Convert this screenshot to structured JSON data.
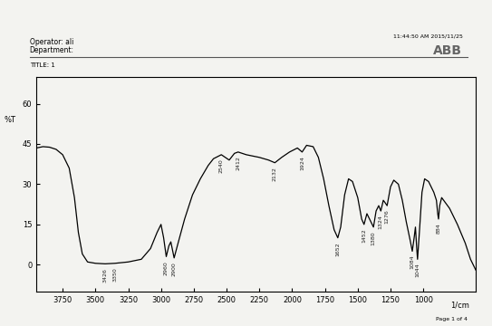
{
  "chart_data": {
    "type": "line",
    "title": "TITLE: 1",
    "header": {
      "operator": "Operator: ali",
      "department": "Department:",
      "timestamp": "11:44:50 AM 2015/11/25",
      "brand": "ABB",
      "page": "Page 1 of 4"
    },
    "x_label": "1/cm",
    "y_label": "%T",
    "x": [
      3950,
      3900,
      3850,
      3800,
      3750,
      3700,
      3660,
      3630,
      3600,
      3560,
      3500,
      3426,
      3350,
      3250,
      3150,
      3080,
      3030,
      3000,
      2980,
      2960,
      2940,
      2925,
      2900,
      2870,
      2820,
      2760,
      2700,
      2640,
      2600,
      2540,
      2480,
      2440,
      2412,
      2350,
      2250,
      2180,
      2132,
      2080,
      2020,
      1960,
      1924,
      1890,
      1840,
      1800,
      1760,
      1720,
      1680,
      1652,
      1630,
      1600,
      1570,
      1540,
      1500,
      1470,
      1452,
      1430,
      1400,
      1380,
      1360,
      1340,
      1324,
      1305,
      1290,
      1276,
      1250,
      1225,
      1190,
      1160,
      1130,
      1100,
      1084,
      1070,
      1060,
      1050,
      1044,
      1030,
      1010,
      990,
      960,
      920,
      900,
      890,
      884,
      875,
      860,
      800,
      740,
      680,
      640,
      600
    ],
    "values": [
      43.5,
      44,
      43.8,
      43,
      41,
      36,
      25,
      12,
      4,
      1,
      0.5,
      0.3,
      0.5,
      1,
      2,
      6,
      12,
      15,
      10,
      3,
      7,
      8.5,
      2.5,
      8,
      17,
      26,
      32,
      37,
      39.5,
      41,
      39,
      41.5,
      42,
      41,
      40,
      39,
      38,
      40,
      42,
      43.5,
      42,
      44.5,
      44,
      40,
      32,
      22,
      13,
      10,
      14,
      26,
      32,
      31,
      25,
      17,
      15,
      19,
      16,
      14,
      20,
      22,
      20,
      24,
      23,
      22,
      29,
      31.5,
      30,
      24,
      16,
      9,
      5,
      10,
      14,
      6,
      2,
      12,
      27,
      32,
      31,
      27,
      24,
      19,
      17,
      22,
      25,
      21,
      15,
      8,
      2,
      -2
    ],
    "color": "#000000",
    "peaks": [
      3426,
      3350,
      2960,
      2900,
      2540,
      2412,
      2132,
      1924,
      1652,
      1452,
      1380,
      1324,
      1276,
      1084,
      1044,
      884
    ],
    "xlim": [
      3950,
      600
    ],
    "xticks": [
      3750,
      3500,
      3250,
      3000,
      2750,
      2500,
      2250,
      2000,
      1750,
      1500,
      1250,
      1000
    ],
    "ylim": [
      -10,
      70
    ],
    "yticks": [
      0,
      15,
      30,
      45,
      60
    ],
    "grid": false
  }
}
